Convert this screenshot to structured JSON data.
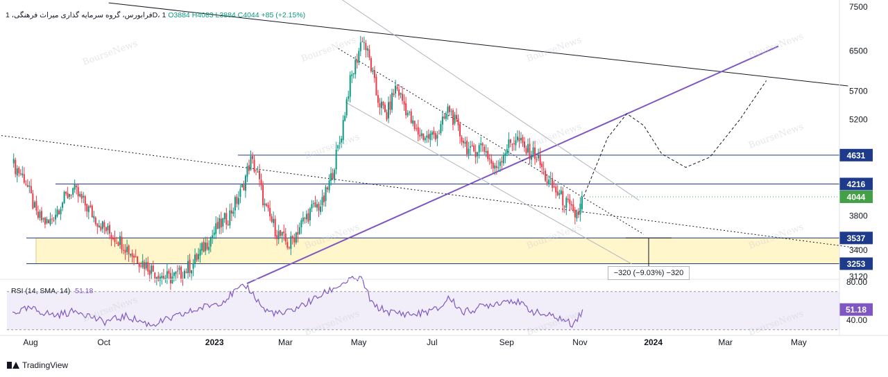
{
  "legend": {
    "symbol": "فرابورس، گروه سرمایه گذاری میراث فرهنگی، 1D، 1",
    "ohlc": "O3884  H4083  L3884  C4044  +85 (+2.15%)"
  },
  "rsi_legend": {
    "label": "RSI (14, SMA, 14)",
    "value": "51.18"
  },
  "watermark": "BourseNews",
  "branding": "TradingView",
  "measure": {
    "label": "−320 (−9.03%) −320"
  },
  "price_badges": [
    {
      "label": "4631",
      "value": 4631,
      "color": "#1e3a8a"
    },
    {
      "label": "4216",
      "value": 4216,
      "color": "#1e3a8a"
    },
    {
      "label": "4044",
      "value": 4044,
      "color": "#43a047"
    },
    {
      "label": "3537",
      "value": 3537,
      "color": "#1e3a8a"
    },
    {
      "label": "3253",
      "value": 3253,
      "color": "#1e3a8a"
    }
  ],
  "rsi_badge": {
    "label": "51.18",
    "value": 51.18,
    "color": "#7e57c2"
  },
  "colors": {
    "up": "#089981",
    "down": "#f23645",
    "rsi": "#7e57c2",
    "zone": "#fff6cc",
    "trend": "#7e57c2"
  },
  "chart_data": {
    "type": "candlestick",
    "price_axis": {
      "ticks": [
        "7500",
        "6500",
        "5700",
        "5200",
        "3800",
        "3400",
        "3120"
      ],
      "tick_values": [
        7500,
        6500,
        5700,
        5200,
        3800,
        3400,
        3120
      ],
      "scale": "log"
    },
    "rsi_axis": {
      "ticks": [
        "80.00",
        "40.00"
      ],
      "tick_values": [
        80,
        40
      ]
    },
    "time_axis": [
      {
        "label": "Aug",
        "day": 0,
        "bold": false
      },
      {
        "label": "Oct",
        "day": 61,
        "bold": false
      },
      {
        "label": "2023",
        "day": 153,
        "bold": true
      },
      {
        "label": "Mar",
        "day": 212,
        "bold": false
      },
      {
        "label": "May",
        "day": 273,
        "bold": false
      },
      {
        "label": "Jul",
        "day": 334,
        "bold": false
      },
      {
        "label": "Sep",
        "day": 396,
        "bold": false
      },
      {
        "label": "Nov",
        "day": 457,
        "bold": false
      },
      {
        "label": "2024",
        "day": 518,
        "bold": true
      },
      {
        "label": "Mar",
        "day": 578,
        "bold": false
      },
      {
        "label": "May",
        "day": 639,
        "bold": false
      }
    ],
    "price_path": [
      [
        -15,
        4500
      ],
      [
        -5,
        4300
      ],
      [
        5,
        3800
      ],
      [
        15,
        3700
      ],
      [
        25,
        3950
      ],
      [
        35,
        4150
      ],
      [
        45,
        3950
      ],
      [
        55,
        3750
      ],
      [
        65,
        3600
      ],
      [
        75,
        3500
      ],
      [
        85,
        3350
      ],
      [
        95,
        3250
      ],
      [
        105,
        3150
      ],
      [
        115,
        3100
      ],
      [
        125,
        3150
      ],
      [
        135,
        3250
      ],
      [
        145,
        3450
      ],
      [
        155,
        3650
      ],
      [
        165,
        3800
      ],
      [
        175,
        4100
      ],
      [
        183,
        4550
      ],
      [
        188,
        4400
      ],
      [
        195,
        3900
      ],
      [
        205,
        3600
      ],
      [
        215,
        3450
      ],
      [
        225,
        3700
      ],
      [
        235,
        3900
      ],
      [
        243,
        3950
      ],
      [
        250,
        4300
      ],
      [
        258,
        4900
      ],
      [
        265,
        5800
      ],
      [
        270,
        6200
      ],
      [
        276,
        6800
      ],
      [
        282,
        6300
      ],
      [
        288,
        5600
      ],
      [
        296,
        5250
      ],
      [
        304,
        5800
      ],
      [
        312,
        5400
      ],
      [
        320,
        5000
      ],
      [
        330,
        4900
      ],
      [
        340,
        5000
      ],
      [
        348,
        5400
      ],
      [
        356,
        5000
      ],
      [
        366,
        4650
      ],
      [
        376,
        4800
      ],
      [
        386,
        4400
      ],
      [
        396,
        4750
      ],
      [
        404,
        4900
      ],
      [
        412,
        4700
      ],
      [
        420,
        4650
      ],
      [
        430,
        4250
      ],
      [
        438,
        4100
      ],
      [
        446,
        3950
      ],
      [
        452,
        3800
      ],
      [
        456,
        3850
      ],
      [
        460,
        4044
      ]
    ],
    "rsi_path": [
      [
        -15,
        48
      ],
      [
        0,
        52
      ],
      [
        20,
        45
      ],
      [
        40,
        50
      ],
      [
        60,
        38
      ],
      [
        80,
        44
      ],
      [
        100,
        35
      ],
      [
        120,
        43
      ],
      [
        140,
        52
      ],
      [
        160,
        60
      ],
      [
        170,
        70
      ],
      [
        180,
        76
      ],
      [
        195,
        50
      ],
      [
        210,
        46
      ],
      [
        230,
        58
      ],
      [
        250,
        72
      ],
      [
        265,
        82
      ],
      [
        275,
        84
      ],
      [
        285,
        55
      ],
      [
        300,
        48
      ],
      [
        320,
        46
      ],
      [
        340,
        52
      ],
      [
        348,
        64
      ],
      [
        360,
        48
      ],
      [
        380,
        56
      ],
      [
        400,
        62
      ],
      [
        420,
        48
      ],
      [
        440,
        42
      ],
      [
        450,
        36
      ],
      [
        456,
        44
      ],
      [
        460,
        51.18
      ]
    ],
    "rsi_levels": [
      70,
      30
    ],
    "zone": [
      3253,
      3537
    ],
    "horizontal_levels": [
      4631,
      4216,
      3537,
      3253
    ],
    "projection_path": [
      [
        460,
        4044
      ],
      [
        480,
        4900
      ],
      [
        496,
        5300
      ],
      [
        510,
        5100
      ],
      [
        525,
        4650
      ],
      [
        545,
        4450
      ],
      [
        565,
        4600
      ],
      [
        590,
        5200
      ],
      [
        612,
        5900
      ]
    ],
    "trend_lines": [
      {
        "style": "solid",
        "color": "#131722",
        "points": [
          [
            65,
            7600
          ],
          [
            680,
            5800
          ]
        ]
      },
      {
        "style": "solid",
        "color": "#7e57c2",
        "points": [
          [
            180,
            3050
          ],
          [
            622,
            6600
          ]
        ]
      },
      {
        "style": "dotted",
        "color": "#131722",
        "points": [
          [
            -30,
            4950
          ],
          [
            690,
            3420
          ]
        ]
      },
      {
        "style": "dotted",
        "color": "#131722",
        "points": [
          [
            256,
            6550
          ],
          [
            510,
            3580
          ]
        ]
      },
      {
        "style": "solid",
        "color": "#b2b5be",
        "points": [
          [
            258,
            7700
          ],
          [
            506,
            4000
          ]
        ]
      },
      {
        "style": "solid",
        "color": "#b2b5be",
        "points": [
          [
            262,
            5500
          ],
          [
            500,
            3250
          ]
        ]
      }
    ]
  }
}
